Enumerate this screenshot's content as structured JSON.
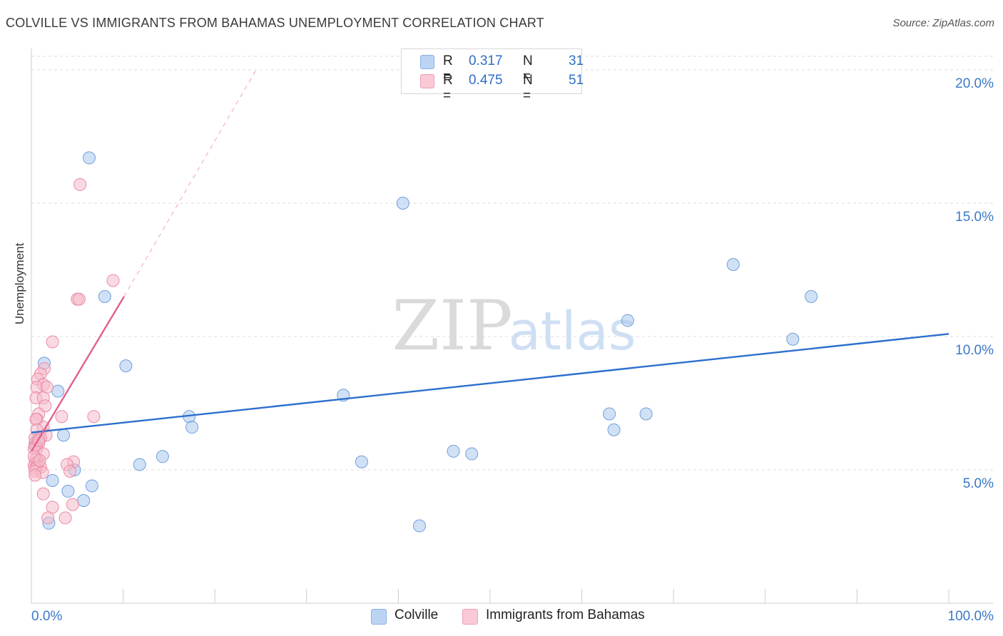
{
  "title": "COLVILLE VS IMMIGRANTS FROM BAHAMAS UNEMPLOYMENT CORRELATION CHART",
  "source": "Source: ZipAtlas.com",
  "watermark": {
    "zip": "ZIP",
    "atlas": "atlas"
  },
  "legend": {
    "r_label": "R =",
    "n_label": "N =",
    "items": [
      {
        "r": "0.317",
        "n": "31"
      },
      {
        "r": "0.475",
        "n": "51"
      }
    ]
  },
  "colors": {
    "blue_fill": "#aac8ef",
    "blue_stroke": "#6f9fdc",
    "blue_line": "#2c6fce",
    "pink_fill": "#f6bccb",
    "pink_stroke": "#ea8aa6",
    "pink_line": "#e0608c",
    "tick_label": "#3a78c8",
    "grid": "#dcdcdc"
  },
  "chart_data": {
    "type": "scatter",
    "title": "COLVILLE VS IMMIGRANTS FROM BAHAMAS UNEMPLOYMENT CORRELATION CHART",
    "xlabel": "",
    "ylabel": "Unemployment",
    "xlim": [
      0,
      100
    ],
    "ylim": [
      0,
      20.5
    ],
    "x_tick_labels": [
      "0.0%",
      "100.0%"
    ],
    "y_ticks": [
      {
        "value": 5,
        "label": "5.0%"
      },
      {
        "value": 10,
        "label": "10.0%"
      },
      {
        "value": 15,
        "label": "15.0%"
      },
      {
        "value": 20,
        "label": "20.0%"
      }
    ],
    "series": [
      {
        "name": "Colville",
        "color": "blue",
        "points": [
          [
            6.3,
            16.7
          ],
          [
            40.5,
            15.0
          ],
          [
            76.5,
            12.7
          ],
          [
            8.0,
            11.5
          ],
          [
            85.0,
            11.5
          ],
          [
            65.0,
            10.6
          ],
          [
            83.0,
            9.9
          ],
          [
            1.4,
            9.0
          ],
          [
            10.3,
            8.9
          ],
          [
            2.9,
            7.95
          ],
          [
            34.0,
            7.8
          ],
          [
            17.2,
            7.0
          ],
          [
            63.0,
            7.1
          ],
          [
            67.0,
            7.1
          ],
          [
            17.5,
            6.6
          ],
          [
            63.5,
            6.5
          ],
          [
            3.5,
            6.3
          ],
          [
            0.8,
            6.2
          ],
          [
            0.4,
            5.9
          ],
          [
            46.0,
            5.7
          ],
          [
            48.0,
            5.6
          ],
          [
            14.3,
            5.5
          ],
          [
            36.0,
            5.3
          ],
          [
            11.8,
            5.2
          ],
          [
            4.7,
            5.0
          ],
          [
            2.3,
            4.6
          ],
          [
            6.6,
            4.4
          ],
          [
            4.0,
            4.2
          ],
          [
            5.7,
            3.85
          ],
          [
            1.9,
            3.0
          ],
          [
            42.3,
            2.9
          ]
        ]
      },
      {
        "name": "Immigrants from Bahamas",
        "color": "pink",
        "points": [
          [
            5.3,
            15.7
          ],
          [
            8.9,
            12.1
          ],
          [
            5.0,
            11.4
          ],
          [
            5.2,
            11.4
          ],
          [
            2.3,
            9.8
          ],
          [
            1.4,
            8.8
          ],
          [
            1.0,
            8.6
          ],
          [
            0.7,
            8.4
          ],
          [
            1.3,
            8.2
          ],
          [
            0.6,
            8.1
          ],
          [
            1.7,
            8.1
          ],
          [
            0.5,
            7.7
          ],
          [
            1.3,
            7.7
          ],
          [
            1.5,
            7.4
          ],
          [
            0.8,
            7.1
          ],
          [
            3.3,
            7.0
          ],
          [
            6.8,
            7.0
          ],
          [
            0.6,
            6.9
          ],
          [
            0.5,
            6.9
          ],
          [
            1.3,
            6.6
          ],
          [
            0.6,
            6.5
          ],
          [
            1.6,
            6.3
          ],
          [
            0.4,
            6.2
          ],
          [
            1.0,
            6.2
          ],
          [
            0.4,
            6.0
          ],
          [
            0.8,
            6.0
          ],
          [
            0.5,
            5.9
          ],
          [
            0.6,
            5.8
          ],
          [
            0.3,
            5.8
          ],
          [
            1.3,
            5.6
          ],
          [
            0.5,
            5.4
          ],
          [
            0.7,
            5.3
          ],
          [
            0.4,
            5.25
          ],
          [
            4.6,
            5.3
          ],
          [
            3.9,
            5.2
          ],
          [
            0.3,
            5.15
          ],
          [
            0.6,
            5.15
          ],
          [
            1.0,
            5.1
          ],
          [
            0.5,
            5.05
          ],
          [
            0.4,
            4.95
          ],
          [
            1.2,
            4.9
          ],
          [
            4.2,
            4.95
          ],
          [
            0.4,
            4.8
          ],
          [
            1.3,
            4.1
          ],
          [
            2.3,
            3.6
          ],
          [
            4.5,
            3.7
          ],
          [
            1.8,
            3.2
          ],
          [
            3.7,
            3.2
          ],
          [
            0.8,
            6.1
          ],
          [
            0.3,
            5.5
          ],
          [
            0.9,
            5.35
          ]
        ]
      }
    ],
    "trend_lines": [
      {
        "series": "Colville",
        "style": "solid",
        "from": [
          0,
          6.4
        ],
        "to": [
          100,
          10.1
        ]
      },
      {
        "series": "Immigrants from Bahamas",
        "style": "solid",
        "from": [
          0,
          5.7
        ],
        "to": [
          10.1,
          11.5
        ]
      },
      {
        "series": "Immigrants from Bahamas",
        "style": "dashed",
        "from": [
          10.1,
          11.5
        ],
        "to": [
          24.5,
          20.0
        ]
      }
    ]
  }
}
